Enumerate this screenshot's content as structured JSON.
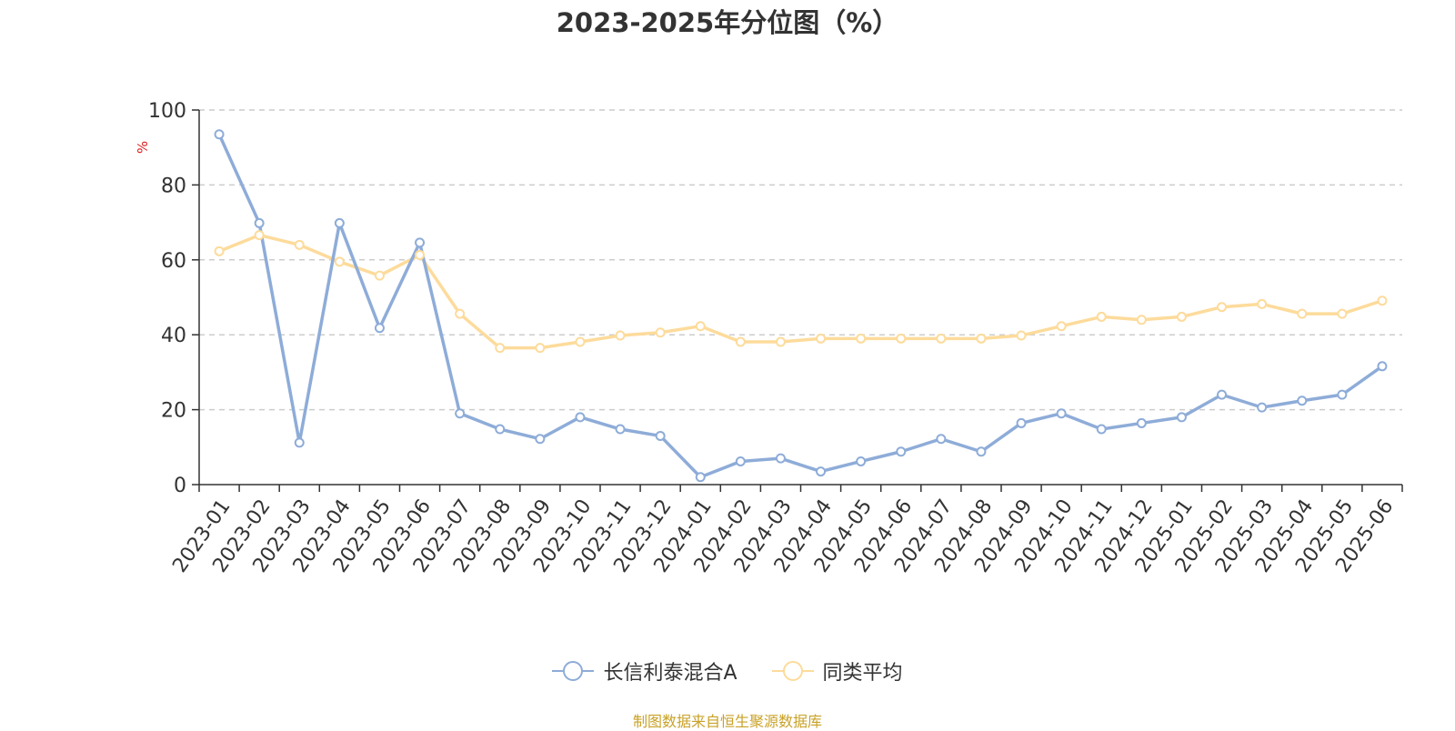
{
  "title": "2023-2025年分位图（%）",
  "footer": "制图数据来自恒生聚源数据库",
  "chart_data": {
    "type": "line",
    "title": "2023-2025年分位图（%）",
    "ylabel": "%",
    "ylim": [
      0,
      100
    ],
    "yticks": [
      0,
      20,
      40,
      60,
      80,
      100
    ],
    "grid": true,
    "legend_position": "bottom-center",
    "categories": [
      "2023-01",
      "2023-02",
      "2023-03",
      "2023-04",
      "2023-05",
      "2023-06",
      "2023-07",
      "2023-08",
      "2023-09",
      "2023-10",
      "2023-11",
      "2023-12",
      "2024-01",
      "2024-02",
      "2024-03",
      "2024-04",
      "2024-05",
      "2024-06",
      "2024-07",
      "2024-08",
      "2024-09",
      "2024-10",
      "2024-11",
      "2024-12",
      "2025-01",
      "2025-02",
      "2025-03",
      "2025-04",
      "2025-05",
      "2025-06"
    ],
    "series": [
      {
        "name": "长信利泰混合A",
        "color": "#8eacd8",
        "values": [
          93.5,
          69.8,
          11.2,
          69.8,
          41.8,
          64.6,
          19.0,
          14.8,
          12.2,
          18.0,
          14.8,
          13.0,
          2.0,
          6.2,
          7.0,
          3.5,
          6.2,
          8.8,
          12.2,
          8.8,
          16.4,
          19.0,
          14.8,
          16.4,
          18.0,
          24.0,
          20.6,
          22.4,
          24.0,
          31.6
        ]
      },
      {
        "name": "同类平均",
        "color": "#fddb9b",
        "values": [
          62.3,
          66.6,
          64.0,
          59.5,
          55.8,
          61.3,
          45.6,
          36.5,
          36.5,
          38.1,
          39.8,
          40.6,
          42.3,
          38.1,
          38.1,
          39.0,
          39.0,
          39.0,
          39.0,
          39.0,
          39.8,
          42.3,
          44.8,
          44.0,
          44.8,
          47.4,
          48.2,
          45.6,
          45.6,
          49.1
        ]
      }
    ]
  }
}
